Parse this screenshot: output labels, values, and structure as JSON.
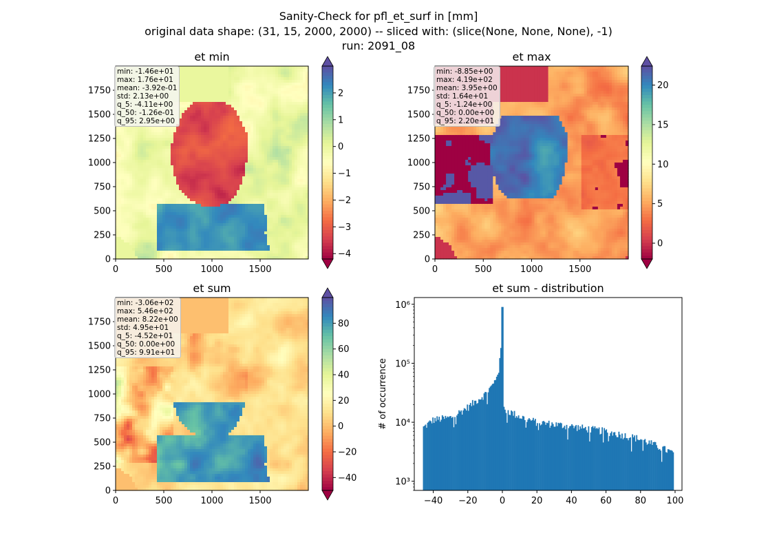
{
  "figure": {
    "title_lines": [
      "Sanity-Check for pfl_et_surf in [mm]",
      "original data shape: (31, 15, 2000, 2000) -- sliced with: (slice(None, None, None), -1)",
      "run: 2091_08"
    ]
  },
  "colormap": "Spectral",
  "chart_data": [
    {
      "type": "heatmap",
      "title": "et min",
      "xlim": [
        0,
        2000
      ],
      "ylim": [
        0,
        2000
      ],
      "xticks": [
        "0",
        "500",
        "1000",
        "1500"
      ],
      "yticks": [
        "0",
        "250",
        "500",
        "750",
        "1000",
        "1250",
        "1500",
        "1750"
      ],
      "colorbar": {
        "range": [
          -4.2,
          3.0
        ],
        "extend": "both",
        "ticks": [
          "−4",
          "−3",
          "−2",
          "−1",
          "0",
          "1",
          "2"
        ]
      },
      "stats": [
        "min: -1.46e+01",
        "max: 1.76e+01",
        "mean: -3.92e-01",
        "std: 2.13e+00",
        "q_5: -4.11e+00",
        "q_50: -1.26e-01",
        "q_95: 2.95e+00"
      ]
    },
    {
      "type": "heatmap",
      "title": "et max",
      "xlim": [
        0,
        2000
      ],
      "ylim": [
        0,
        2000
      ],
      "xticks": [
        "0",
        "500",
        "1000",
        "1500"
      ],
      "yticks": [
        "0",
        "250",
        "500",
        "750",
        "1000",
        "1250",
        "1500",
        "1750"
      ],
      "colorbar": {
        "range": [
          -2.0,
          22.4
        ],
        "extend": "both",
        "ticks": [
          "0",
          "5",
          "10",
          "15",
          "20"
        ]
      },
      "stats": [
        "min: -8.85e+00",
        "max: 4.19e+02",
        "mean: 3.95e+00",
        "std: 1.64e+01",
        "q_5: -1.24e+00",
        "q_50: 0.00e+00",
        "q_95: 2.20e+01"
      ]
    },
    {
      "type": "heatmap",
      "title": "et sum",
      "xlim": [
        0,
        2000
      ],
      "ylim": [
        0,
        2000
      ],
      "xticks": [
        "0",
        "500",
        "1000",
        "1500"
      ],
      "yticks": [
        "0",
        "250",
        "500",
        "750",
        "1000",
        "1250",
        "1500",
        "1750"
      ],
      "colorbar": {
        "range": [
          -50,
          100
        ],
        "extend": "both",
        "ticks": [
          "−40",
          "−20",
          "0",
          "20",
          "40",
          "60",
          "80"
        ]
      },
      "stats": [
        "min: -3.06e+02",
        "max: 5.46e+02",
        "mean: 8.22e+00",
        "std: 4.95e+01",
        "q_5: -4.52e+01",
        "q_50: 0.00e+00",
        "q_95: 9.91e+01"
      ]
    },
    {
      "type": "bar",
      "title": "et sum - distribution",
      "ylabel": "# of occurrence",
      "xlabel": "",
      "yscale": "log",
      "xlim": [
        -51,
        104
      ],
      "ylim": [
        700,
        1300000
      ],
      "xticks": [
        "−40",
        "−20",
        "0",
        "20",
        "40",
        "60",
        "80",
        "100"
      ],
      "yticks": [
        "10³",
        "10⁴",
        "10⁵",
        "10⁶"
      ],
      "bar_color": "#1f77b4",
      "bins": {
        "start": -46,
        "end": 99.2
      },
      "anchors": [
        [
          -46,
          8000
        ],
        [
          -40,
          11000
        ],
        [
          -30,
          12000
        ],
        [
          -20,
          18000
        ],
        [
          -10,
          30000
        ],
        [
          -5,
          45000
        ],
        [
          -2,
          80000
        ],
        [
          -1,
          150000
        ],
        [
          -0.3,
          900000
        ],
        [
          0.5,
          17000
        ],
        [
          10,
          12500
        ],
        [
          20,
          10000
        ],
        [
          40,
          8500
        ],
        [
          60,
          7000
        ],
        [
          80,
          5200
        ],
        [
          99,
          3000
        ]
      ]
    }
  ]
}
